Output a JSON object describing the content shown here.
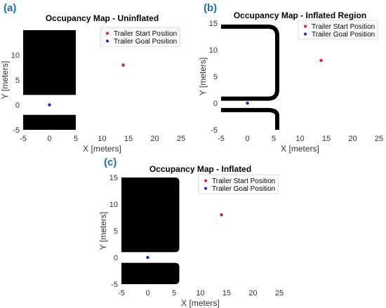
{
  "chart_data": [
    {
      "panel": "(a)",
      "type": "scatter",
      "title": "Occupancy Map - Uninflated",
      "xlabel": "X [meters]",
      "ylabel": "Y [meters]",
      "xlim": [
        -5,
        25
      ],
      "ylim": [
        -5,
        15
      ],
      "xticks": [
        -5,
        0,
        5,
        10,
        15,
        20,
        25
      ],
      "yticks": [
        -5,
        0,
        5,
        10
      ],
      "legend_position": "top-right",
      "obstacles": [
        {
          "x": [
            -5,
            5
          ],
          "y": [
            2,
            15
          ]
        },
        {
          "x": [
            -5,
            5
          ],
          "y": [
            -5,
            -2
          ]
        }
      ],
      "series": [
        {
          "name": "Trailer Start Position",
          "color": "#e02020",
          "points": [
            [
              14,
              8
            ]
          ]
        },
        {
          "name": "Trailer Goal Position",
          "color": "#2020e0",
          "points": [
            [
              0,
              0
            ]
          ]
        }
      ]
    },
    {
      "panel": "(b)",
      "type": "scatter",
      "title": "Occupancy Map - Inflated Region",
      "xlabel": "X [meters]",
      "ylabel": "Y [meters]",
      "xlim": [
        -5,
        25
      ],
      "ylim": [
        -5,
        15
      ],
      "xticks": [
        -5,
        0,
        5,
        10,
        15,
        20,
        25
      ],
      "yticks": [
        -5,
        0,
        5,
        10,
        15
      ],
      "legend_position": "top-right",
      "inflated_region_outline": true,
      "series": [
        {
          "name": "Trailer Start Position",
          "color": "#e02020",
          "points": [
            [
              14,
              8
            ]
          ]
        },
        {
          "name": "Trailer Goal Position",
          "color": "#2020e0",
          "points": [
            [
              0,
              0
            ]
          ]
        }
      ]
    },
    {
      "panel": "(c)",
      "type": "scatter",
      "title": "Occupancy Map - Inflated",
      "xlabel": "X [meters]",
      "ylabel": "Y [meters]",
      "xlim": [
        -5,
        25
      ],
      "ylim": [
        -5,
        15
      ],
      "xticks": [
        -5,
        0,
        5,
        10,
        15,
        20,
        25
      ],
      "yticks": [
        -5,
        0,
        5,
        10,
        15
      ],
      "legend_position": "top-right",
      "obstacles": [
        {
          "x": [
            -5,
            6
          ],
          "y": [
            1,
            15
          ]
        },
        {
          "x": [
            -5,
            6
          ],
          "y": [
            -5,
            -1
          ]
        }
      ],
      "series": [
        {
          "name": "Trailer Start Position",
          "color": "#e02020",
          "points": [
            [
              14,
              8
            ]
          ]
        },
        {
          "name": "Trailer Goal Position",
          "color": "#2020e0",
          "points": [
            [
              0,
              0
            ]
          ]
        }
      ]
    }
  ]
}
